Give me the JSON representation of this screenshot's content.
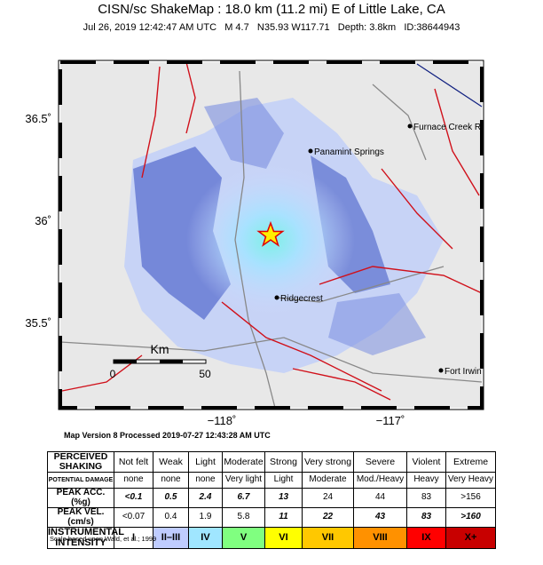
{
  "header": {
    "title": "CISN/sc ShakeMap : 18.0 km (11.2 mi) E of Little Lake, CA",
    "subtitle": "Jul 26, 2019 12:42:47 AM UTC   M 4.7   N35.93 W117.71   Depth: 3.8km   ID:38644943"
  },
  "map": {
    "lat_labels": [
      "36.5˚",
      "36˚",
      "35.5˚"
    ],
    "lon_labels": [
      "−118˚",
      "−117˚"
    ],
    "places": [
      "Furnace Creek R",
      "Panamint Springs",
      "Ridgecrest",
      "Fort Irwin"
    ],
    "scale": {
      "unit": "Km",
      "labels": [
        "0",
        "50"
      ]
    }
  },
  "version": "Map Version 8 Processed 2019-07-27 12:43:28 AM UTC",
  "table": {
    "rows": [
      [
        "PERCEIVED SHAKING",
        "Not felt",
        "Weak",
        "Light",
        "Moderate",
        "Strong",
        "Very strong",
        "Severe",
        "Violent",
        "Extreme"
      ],
      [
        "POTENTIAL DAMAGE",
        "none",
        "none",
        "none",
        "Very light",
        "Light",
        "Moderate",
        "Mod./Heavy",
        "Heavy",
        "Very Heavy"
      ],
      [
        "PEAK ACC.(%g)",
        "<0.1",
        "0.5",
        "2.4",
        "6.7",
        "13",
        "24",
        "44",
        "83",
        ">156"
      ],
      [
        "PEAK VEL.(cm/s)",
        "<0.07",
        "0.4",
        "1.9",
        "5.8",
        "11",
        "22",
        "43",
        "83",
        ">160"
      ],
      [
        "INSTRUMENTAL INTENSITY",
        "I",
        "II–III",
        "IV",
        "V",
        "VI",
        "VII",
        "VIII",
        "IX",
        "X+"
      ]
    ]
  },
  "note": "Scale based upon Wald, et al.; 1999"
}
